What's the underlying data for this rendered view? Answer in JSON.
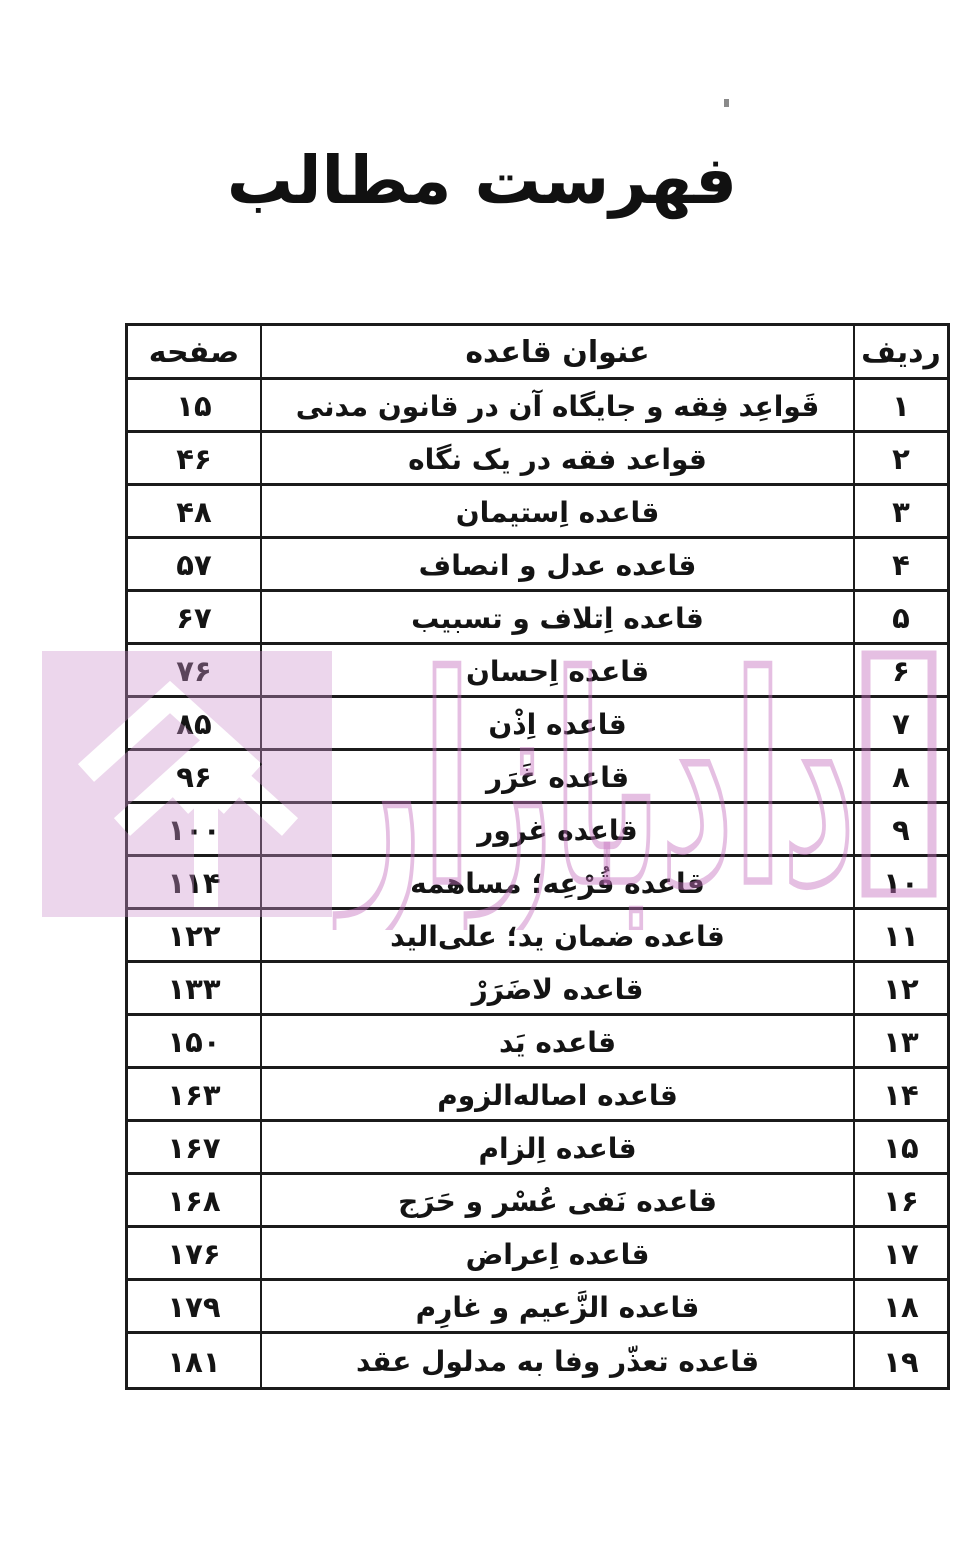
{
  "page_title": "فهرست مطالب",
  "table": {
    "headers": {
      "page": "صفحه",
      "title": "عنوان قاعده",
      "row": "ردیف"
    },
    "rows": [
      {
        "row": "۱",
        "title": "قَواعِد فِقه و جایگاه آن در قانون مدنی",
        "page": "۱۵"
      },
      {
        "row": "۲",
        "title": "قواعد فقه در یک نگاه",
        "page": "۴۶"
      },
      {
        "row": "۳",
        "title": "قاعده اِستیمان",
        "page": "۴۸"
      },
      {
        "row": "۴",
        "title": "قاعده عدل و انصاف",
        "page": "۵۷"
      },
      {
        "row": "۵",
        "title": "قاعده اِتلاف و تسبیب",
        "page": "۶۷"
      },
      {
        "row": "۶",
        "title": "قاعده اِحسان",
        "page": "۷۶"
      },
      {
        "row": "۷",
        "title": "قاعده اِذْن",
        "page": "۸۵"
      },
      {
        "row": "۸",
        "title": "قاعده غَرَر",
        "page": "۹۶"
      },
      {
        "row": "۹",
        "title": "قاعده غرور",
        "page": "۱۰۰"
      },
      {
        "row": "۱۰",
        "title": "قاعده قُرْعِه؛ مساهمه",
        "page": "۱۱۴"
      },
      {
        "row": "۱۱",
        "title": "قاعده ضمان ید؛ علی‌الید",
        "page": "۱۲۲"
      },
      {
        "row": "۱۲",
        "title": "قاعده لاضَرَرْ",
        "page": "۱۳۳"
      },
      {
        "row": "۱۳",
        "title": "قاعده یَد",
        "page": "۱۵۰"
      },
      {
        "row": "۱۴",
        "title": "قاعده اصاله‌الزوم",
        "page": "۱۶۳"
      },
      {
        "row": "۱۵",
        "title": "قاعده اِلزام",
        "page": "۱۶۷"
      },
      {
        "row": "۱۶",
        "title": "قاعده نَفی عُسْر و حَرَج",
        "page": "۱۶۸"
      },
      {
        "row": "۱۷",
        "title": "قاعده اِعراض",
        "page": "۱۷۶"
      },
      {
        "row": "۱۸",
        "title": "قاعده الزَّعیم و غارِم",
        "page": "۱۷۹"
      },
      {
        "row": "۱۹",
        "title": "قاعده تعذّر وفا به مدلول عقد",
        "page": "۱۸۱"
      }
    ]
  },
  "watermark": {
    "text": "دادبازار",
    "block_fill": "rgba(206,148,204,0.38)",
    "stroke_color": "rgba(197,112,191,0.45)"
  }
}
